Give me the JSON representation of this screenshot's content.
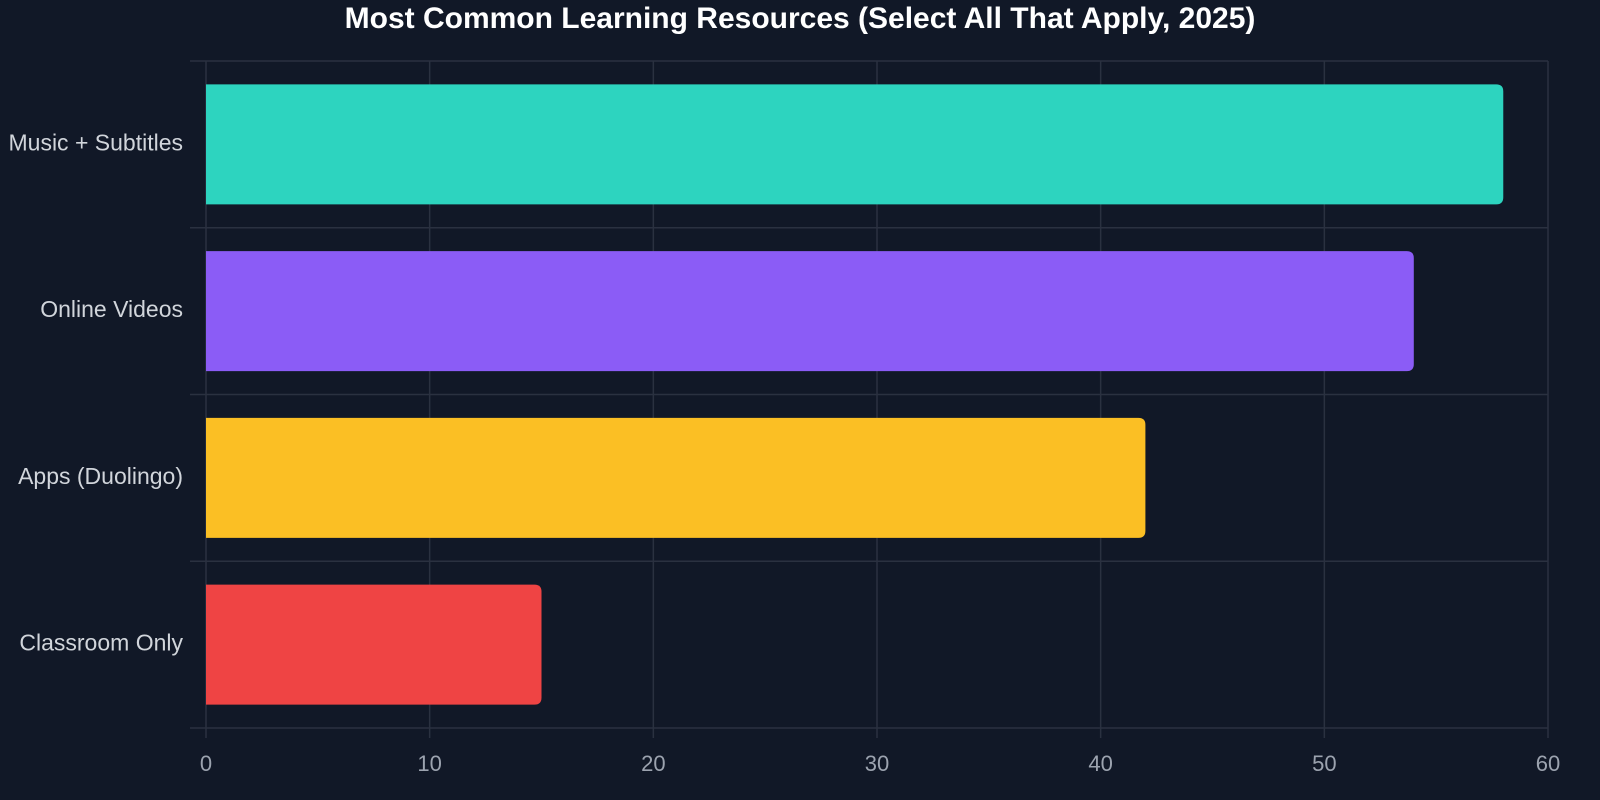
{
  "chart_data": {
    "type": "bar",
    "orientation": "horizontal",
    "title": "Most Common Learning Resources (Select All That Apply, 2025)",
    "categories": [
      "Music + Subtitles",
      "Online Videos",
      "Apps (Duolingo)",
      "Classroom Only"
    ],
    "values": [
      58,
      54,
      42,
      15
    ],
    "colors": [
      "#2dd4bf",
      "#8b5cf6",
      "#fbbf24",
      "#ef4444"
    ],
    "xlim": [
      0,
      60
    ],
    "xticks": [
      0,
      10,
      20,
      30,
      40,
      50,
      60
    ],
    "grid": true
  }
}
